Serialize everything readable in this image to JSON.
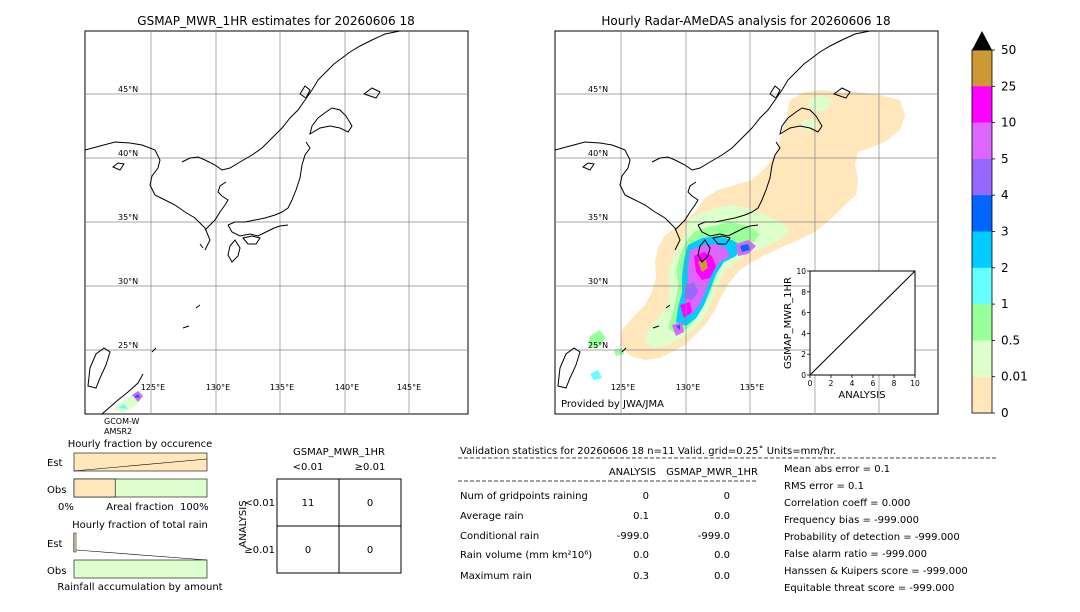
{
  "left_map": {
    "title": "GSMAP_MWR_1HR estimates for 20260606 18",
    "lat_labels": [
      "45°N",
      "40°N",
      "35°N",
      "30°N",
      "25°N"
    ],
    "lon_labels": [
      "125°E",
      "130°E",
      "135°E",
      "140°E",
      "145°E"
    ],
    "sensor_label_1": "GCOM-W",
    "sensor_label_2": "AMSR2"
  },
  "right_map": {
    "title": "Hourly Radar-AMeDAS analysis for 20260606 18",
    "lat_labels": [
      "45°N",
      "40°N",
      "35°N",
      "30°N",
      "25°N"
    ],
    "lon_labels": [
      "125°E",
      "130°E",
      "135°E"
    ],
    "credit": "Provided by JWA/JMA"
  },
  "colorbar": {
    "labels": [
      "50",
      "25",
      "10",
      "5",
      "4",
      "3",
      "2",
      "1",
      "0.5",
      "0.01",
      "0"
    ],
    "colors": [
      "#cc9933",
      "#ff00ff",
      "#dd66ff",
      "#9966ff",
      "#0066ff",
      "#00ccff",
      "#66ffff",
      "#99ff99",
      "#ddffcc",
      "#ffe6bb"
    ]
  },
  "chart_data": [
    {
      "type": "scatter",
      "title": "",
      "xlabel": "ANALYSIS",
      "ylabel": "GSMAP_MWR_1HR",
      "xlim": [
        0,
        10
      ],
      "ylim": [
        0,
        10
      ],
      "ticks": [
        "0",
        "2",
        "4",
        "6",
        "8",
        "10"
      ],
      "diagonal": [
        [
          0,
          0
        ],
        [
          10,
          10
        ]
      ]
    },
    {
      "type": "bar",
      "title": "Hourly fraction by occurence",
      "categories": [
        "Est",
        "Obs"
      ],
      "series": [
        {
          "values": [
            0.0,
            0.31
          ]
        }
      ],
      "xlabel": "Areal fraction",
      "x_left_label": "0%",
      "x_right_label": "100%"
    },
    {
      "type": "bar",
      "title": "Hourly fraction of total rain",
      "categories": [
        "Est",
        "Obs"
      ],
      "xlabel": "Rainfall accumulation by amount"
    }
  ],
  "contingency": {
    "title": "GSMAP_MWR_1HR",
    "col_headers": [
      "<0.01",
      "≥0.01"
    ],
    "row_label": "ANALYSIS",
    "row_headers": [
      "<0.01",
      "≥0.01"
    ],
    "cells": [
      [
        "11",
        "0"
      ],
      [
        "0",
        "0"
      ]
    ]
  },
  "stats": {
    "header": "Validation statistics for 20260606 18  n=11 Valid. grid=0.25˚ Units=mm/hr.",
    "col_analysis": "ANALYSIS",
    "col_gsmap": "GSMAP_MWR_1HR",
    "rows": [
      {
        "label": "Num of gridpoints raining",
        "a": "0",
        "g": "0"
      },
      {
        "label": "Average rain",
        "a": "0.1",
        "g": "0.0"
      },
      {
        "label": "Conditional rain",
        "a": "-999.0",
        "g": "-999.0"
      },
      {
        "label": "Rain volume (mm km²10⁶)",
        "a": "0.0",
        "g": "0.0"
      },
      {
        "label": "Maximum rain",
        "a": "0.3",
        "g": "0.0"
      }
    ],
    "scores": [
      "Mean abs error =    0.1",
      "RMS error =    0.1",
      "Correlation coeff =  0.000",
      "Frequency bias = -999.000",
      "Probability of detection = -999.000",
      "False alarm ratio = -999.000",
      "Hanssen & Kuipers score = -999.000",
      "Equitable threat score = -999.000"
    ]
  }
}
